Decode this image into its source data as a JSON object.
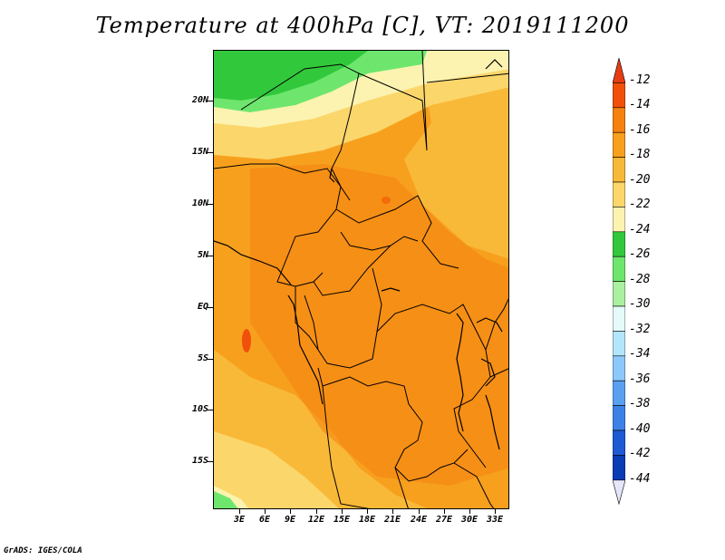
{
  "title": "Temperature at 400hPa [C], VT: 2019111200",
  "map": {
    "lat_labels": [
      "20N",
      "15N",
      "10N",
      "5N",
      "EQ",
      "5S",
      "10S",
      "15S"
    ],
    "lon_labels": [
      "3E",
      "6E",
      "9E",
      "12E",
      "15E",
      "18E",
      "21E",
      "24E",
      "27E",
      "30E",
      "33E"
    ]
  },
  "colorbar": {
    "labels": [
      "-12",
      "-14",
      "-16",
      "-18",
      "-20",
      "-22",
      "-24",
      "-26",
      "-28",
      "-30",
      "-32",
      "-34",
      "-36",
      "-38",
      "-40",
      "-42",
      "-44"
    ],
    "colors": [
      "#f0500a",
      "#f5820f",
      "#f7a01e",
      "#f9b938",
      "#fbd66b",
      "#fdf3b0",
      "#32c83c",
      "#6ee66e",
      "#aaf0a0",
      "#e6fafa",
      "#b4e6fa",
      "#8cc8fa",
      "#5aa0f0",
      "#3c82e6",
      "#1e5ad2",
      "#0a3cb4",
      "#0a0a6e"
    ],
    "top_color": "#e63c14",
    "bottom_color": "#e6e6fa"
  },
  "credit": "GrADS: IGES/COLA"
}
